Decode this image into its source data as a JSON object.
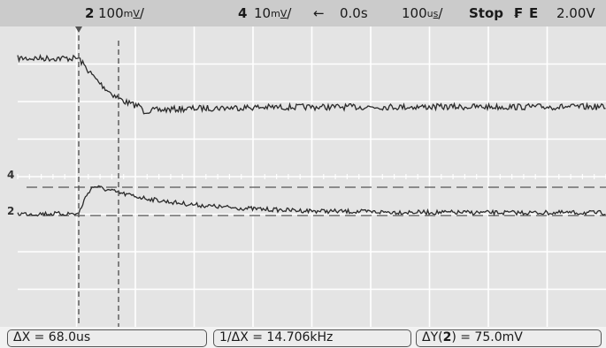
{
  "topbar": {
    "ch2_num": "2",
    "ch2_scale": "100",
    "ch2_unit": "/",
    "ch4_num": "4",
    "ch4_scale": "10",
    "ch4_unit": "/",
    "delay_arrow": "←",
    "delay": "0.0s",
    "timebase_value": "100",
    "timebase_unit": "/",
    "run_state": "Stop",
    "trigger_slope_symbol": "₣",
    "trigger_mode": "E",
    "trigger_level": "2.00V"
  },
  "markers": {
    "ch4": "4",
    "ch2": "2"
  },
  "measurements": {
    "delta_x": "ΔX = 68.0us",
    "inv_delta_x": "1/ΔX = 14.706kHz",
    "delta_y_prefix": "ΔY(",
    "delta_y_channel": "2",
    "delta_y_suffix": ") = 75.0mV"
  },
  "colors": {
    "background": "#e4e4e4",
    "grid": "#ffffff",
    "trace": "#2a2a2a",
    "cursor": "#555555"
  }
}
